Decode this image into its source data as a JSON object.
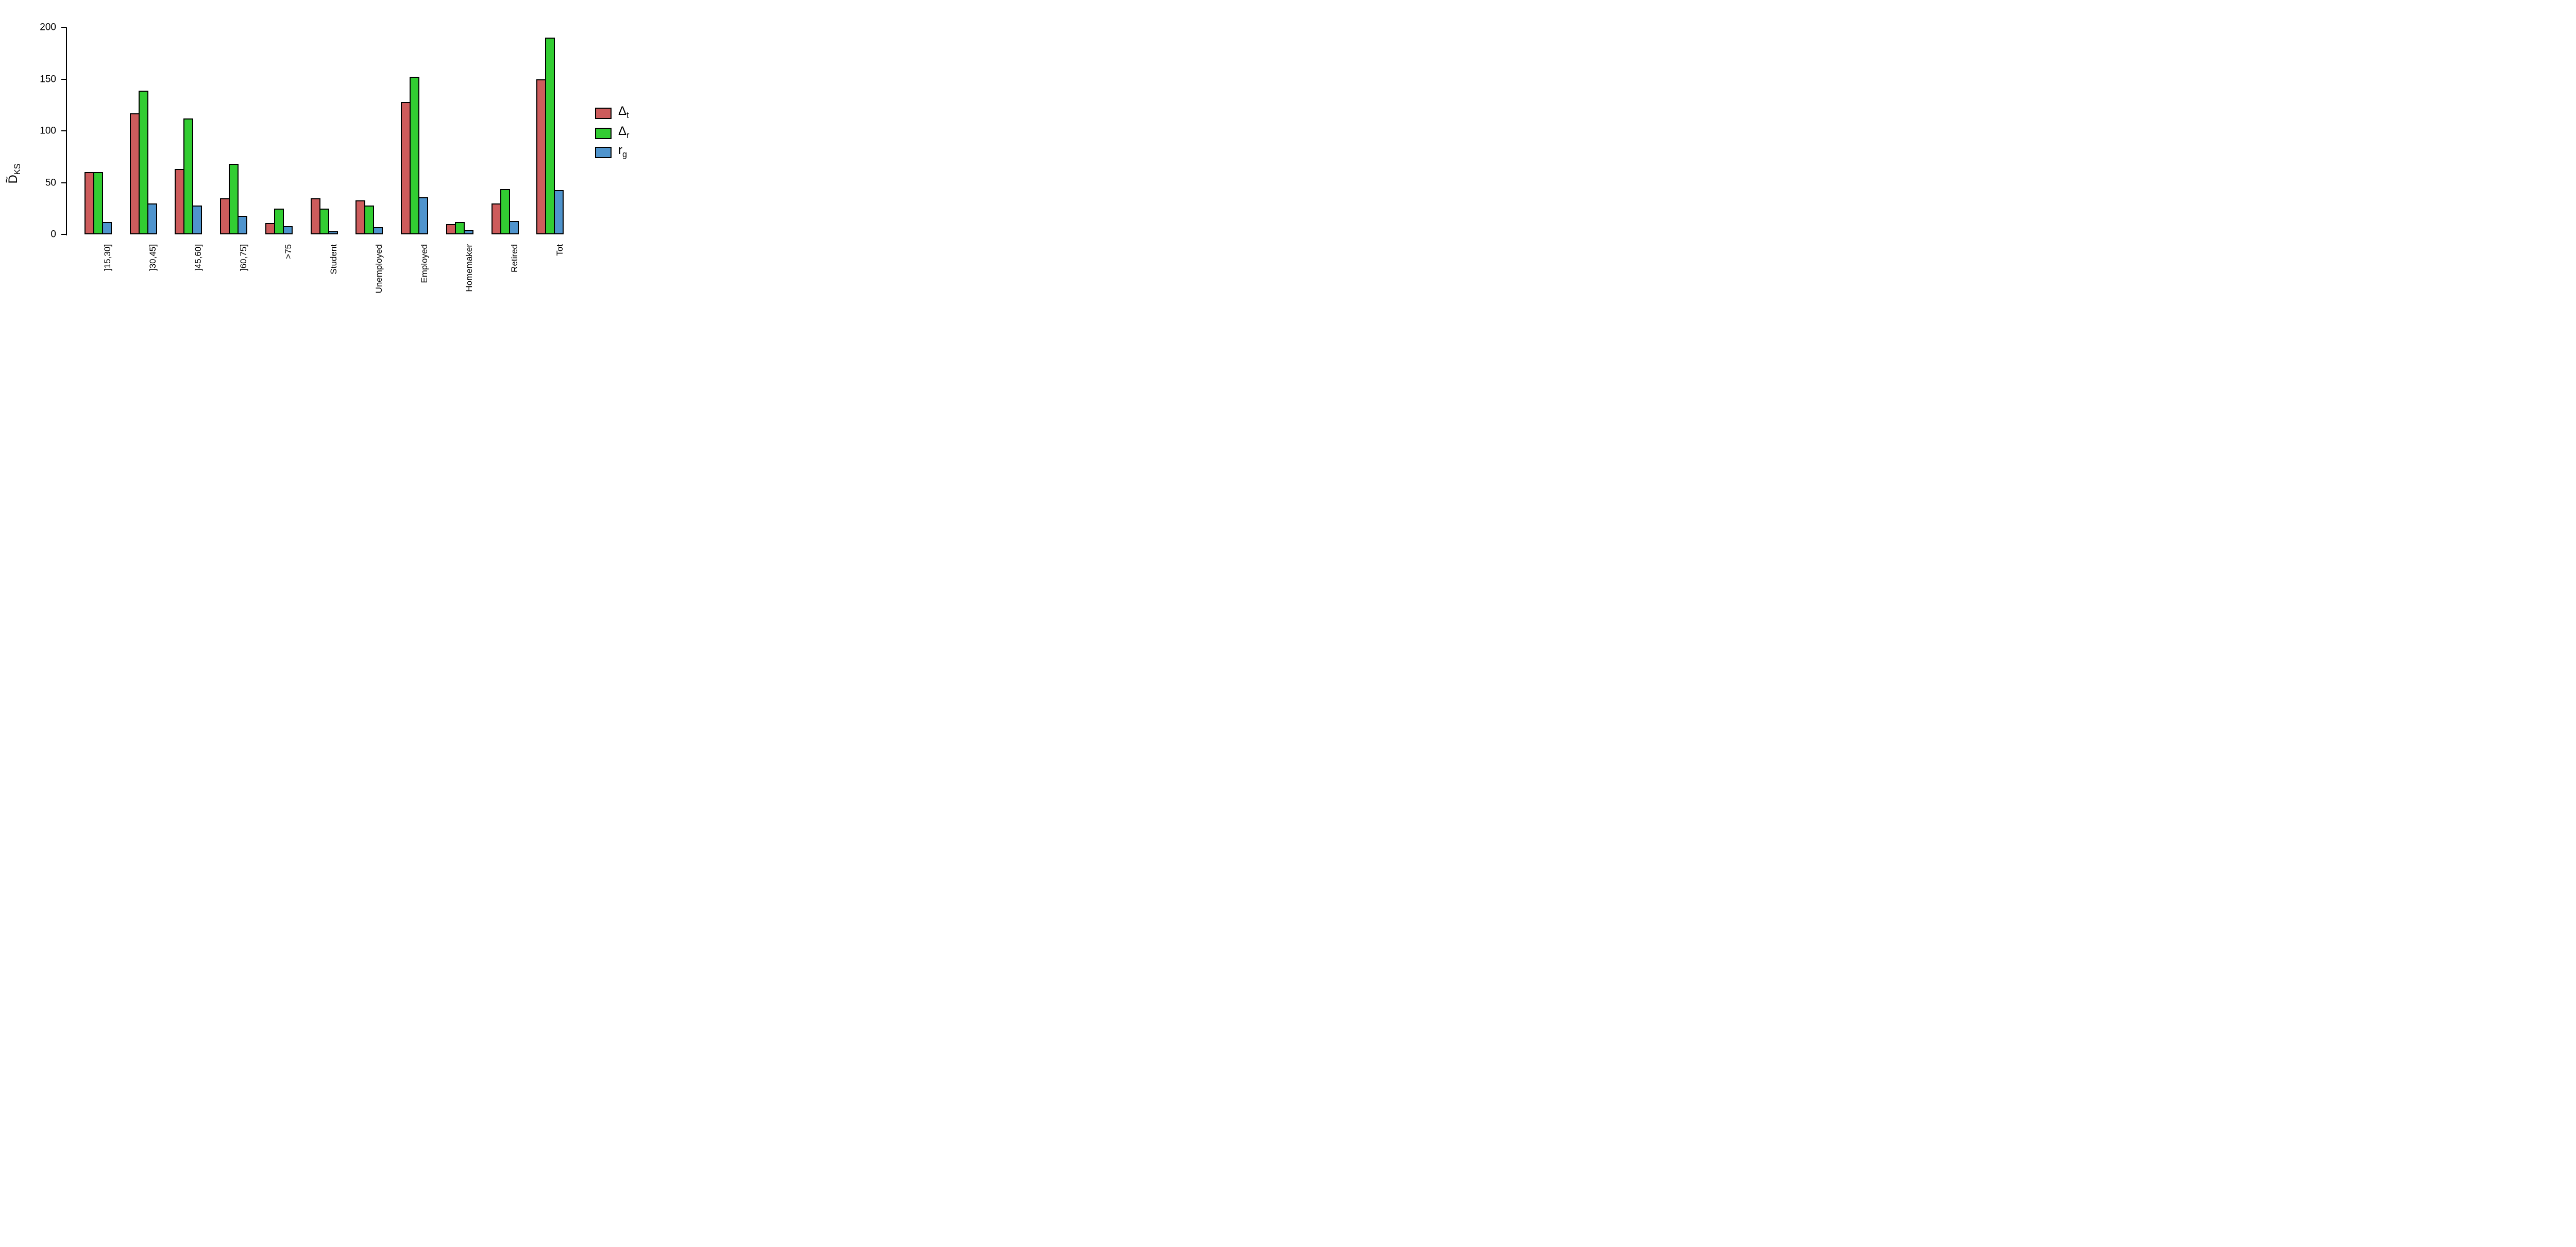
{
  "chart_data": {
    "type": "bar",
    "title": "",
    "xlabel": "",
    "ylabel": {
      "base": "D",
      "accent": "~",
      "sub": "KS"
    },
    "ylim": [
      0,
      200
    ],
    "yticks": [
      0,
      50,
      100,
      150,
      200
    ],
    "grid": false,
    "legend_position": "right",
    "categories": [
      "]15,30]",
      "]30,45]",
      "]45,60]",
      "]60,75]",
      ">75",
      "Student",
      "Unemployed",
      "Employed",
      "Homemaker",
      "Retired",
      "Tot"
    ],
    "series": [
      {
        "name": "Delta_t",
        "label_base": "Δ",
        "label_sub": "t",
        "color": "#CD5C5C",
        "values": [
          60,
          117,
          63,
          35,
          11,
          35,
          33,
          128,
          10,
          30,
          150
        ]
      },
      {
        "name": "Delta_r",
        "label_base": "Δ",
        "label_sub": "r",
        "color": "#32CD32",
        "values": [
          60,
          139,
          112,
          68,
          25,
          25,
          28,
          152,
          12,
          44,
          190
        ]
      },
      {
        "name": "r_g",
        "label_base": "r",
        "label_sub": "g",
        "color": "#4F94CD",
        "values": [
          12,
          30,
          28,
          18,
          8,
          3,
          7,
          36,
          4,
          13,
          43
        ]
      }
    ]
  }
}
